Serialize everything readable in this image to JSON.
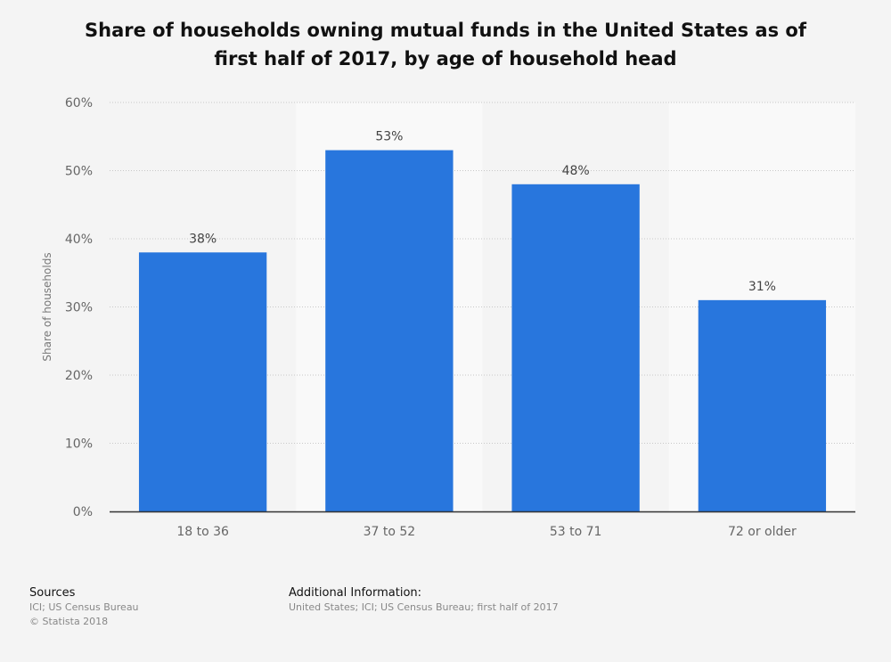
{
  "chart_data": {
    "type": "bar",
    "title": "Share of households owning mutual funds in the United States as of first half of 2017, by age of household head",
    "title_lines": [
      "Share of households owning mutual funds in the United States as of",
      "first half of 2017, by age of household head"
    ],
    "xlabel": "",
    "ylabel": "Share of households",
    "categories": [
      "18 to 36",
      "37 to 52",
      "53 to 71",
      "72 or older"
    ],
    "values": [
      38,
      53,
      48,
      31
    ],
    "data_labels": [
      "38%",
      "53%",
      "48%",
      "31%"
    ],
    "ylim": [
      0,
      60
    ],
    "yticks": [
      0,
      10,
      20,
      30,
      40,
      50,
      60
    ],
    "ytick_labels": [
      "0%",
      "10%",
      "20%",
      "30%",
      "40%",
      "50%",
      "60%"
    ],
    "grid": true,
    "legend": "none",
    "colors": {
      "bar": "#2876dd",
      "band": "#f9f9f9",
      "grid": "#c8c8c8",
      "axis": "#333333",
      "tick_text": "#666666",
      "label_text": "#444444"
    }
  },
  "footer": {
    "sources_heading": "Sources",
    "sources_lines": [
      "ICI; US Census Bureau",
      "© Statista 2018"
    ],
    "additional_heading": "Additional Information:",
    "additional_lines": [
      "United States; ICI; US Census Bureau; first half of 2017"
    ]
  }
}
